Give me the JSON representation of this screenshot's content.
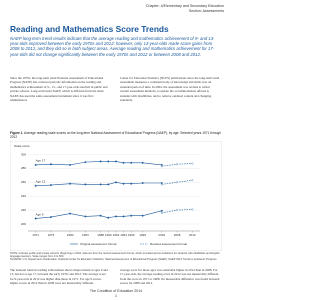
{
  "header": {
    "chapter": "Chapter: 4/Elementary and Secondary Education",
    "section": "Section: Assessments"
  },
  "title": "Reading and Mathematics Score Trends",
  "intro": "NAEP long-term trend results indicate that the average reading and mathematics achievement of 9- and 13-year-olds improved between the early 1970s and 2012; however, only 13-year-olds made score gains from 2008 to 2012, and they did so in both subject areas. Average reading and mathematics achievement for 17-year-olds did not change significantly between the early 1970s and 2012 or between 2008 and 2012.",
  "body_top": [
    "Since the 1970s, the long-term trend National Assessment of Educational Progress (NAEP) has collected periodic information on the reading and mathematics achievement of 9-, 13-, and 17-year-olds enrolled in public and private schools. Long-term trend NAEP, which is different from the main NAEP, has used the same assessment instrument since it was first administered.",
    "Center for Education Statistics (NCES) publications since the long-term trend assessment measures a consistent body of knowledge and skills over an extended period of time. In 2004, the assessment was revised to reflect current assessment methods, to update the accommodations offered to students with disabilities, and to remove outdated content and changing standards."
  ],
  "figure": {
    "number": "Figure 1.",
    "title": "Average reading scale scores on the long-term National Assessment of Educational Progress (NAEP), by age: Selected years 1971 through 2012",
    "y_label": "Scale score",
    "yticks": [
      200,
      220,
      240,
      260,
      280,
      300
    ],
    "original_years": [
      1971,
      1975,
      1980,
      1984,
      1988,
      1990,
      1992,
      1994,
      1996,
      1999,
      2004
    ],
    "revised_years": [
      2004,
      2008,
      2012
    ],
    "legend": [
      "Original assessment format",
      "Revised assessment format"
    ],
    "ages": [
      {
        "label": "Age 17",
        "original": [
          285,
          286,
          285,
          289,
          290,
          290,
          290,
          288,
          288,
          288,
          285
        ],
        "revised": [
          283,
          286,
          287
        ]
      },
      {
        "label": "Age 13",
        "original": [
          255,
          256,
          258,
          257,
          257,
          257,
          260,
          258,
          258,
          259,
          259
        ],
        "revised": [
          257,
          260,
          263
        ]
      },
      {
        "label": "Age 9",
        "original": [
          208,
          210,
          215,
          211,
          212,
          209,
          211,
          211,
          212,
          212,
          219
        ],
        "revised": [
          216,
          220,
          221
        ]
      }
    ],
    "note": "NOTE: Includes public and private schools. Beginning in 2004, data are from the revised assessment format, which provided accommodations for students with disabilities and English language learners. Scale ranges from 0 to 500.",
    "source": "SOURCE: U.S. Department of Education, National Center for Education Statistics, National Assessment of Educational Progress (NAEP), NAEP 2012 Trends in Academic Progress."
  },
  "body_bottom": [
    "The national trend in reading achievement shows improvement at ages 9 and 13, but not at age 17, between the early 1970s and 2012. The average score for 9-year-olds in 2012 was higher than those in 1971. For age 9 scores, higher scores in 2012 than in 2008 were not measurably different.",
    "average score for those ages was somewhat higher in 2012 than in 2008. For 17-year-olds, the average reading score in 2012 was not measurably different from the score in 1971 or 2008. No measurable difference was found between scores for 2008 and 2012."
  ],
  "footer": {
    "publication": "The Condition of Education 2014",
    "page": "1"
  }
}
